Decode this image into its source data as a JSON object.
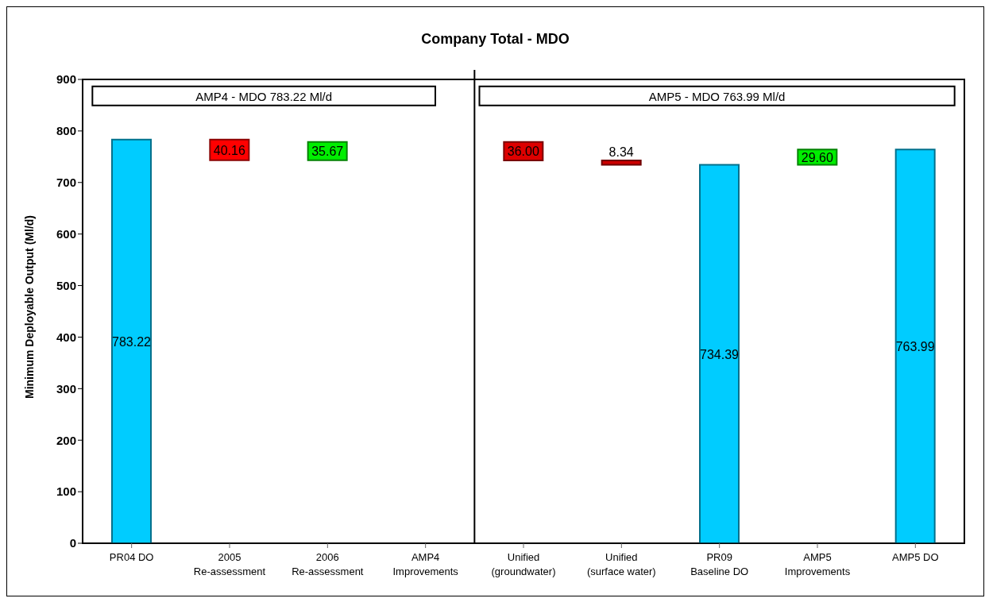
{
  "chart_data": {
    "type": "bar",
    "title": "Company Total - MDO",
    "ylabel": "Minimum Deployable Output (Ml/d)",
    "categories": [
      "PR04 DO",
      "2005\nRe-assessment",
      "2006\nRe-assessment",
      "AMP4\nImprovements",
      "Unified\n(groundwater)",
      "Unified\n(surface water)",
      "PR09\nBaseline DO",
      "AMP5\nImprovements",
      "AMP5 DO"
    ],
    "base": [
      0,
      743.06,
      743.06,
      null,
      742.73,
      734.39,
      0,
      734.39,
      0
    ],
    "values": [
      783.22,
      40.16,
      35.67,
      null,
      36.0,
      8.34,
      734.39,
      29.6,
      763.99
    ],
    "colors": [
      "#00ccff",
      "#ff0000",
      "#00ee00",
      "#00ccff",
      "#dd0000",
      "#cc0000",
      "#00ccff",
      "#00ee00",
      "#00ccff"
    ],
    "value_labels": [
      "783.22",
      "40.16",
      "35.67",
      null,
      "36.00",
      "8.34",
      "734.39",
      "29.60",
      "763.99"
    ],
    "annotations": [
      "AMP4 - MDO 783.22 Ml/d",
      "AMP5 - MDO 763.99 Ml/d"
    ],
    "ylim": [
      0,
      900
    ],
    "yticks": [
      0,
      100,
      200,
      300,
      400,
      500,
      600,
      700,
      800,
      900
    ]
  }
}
